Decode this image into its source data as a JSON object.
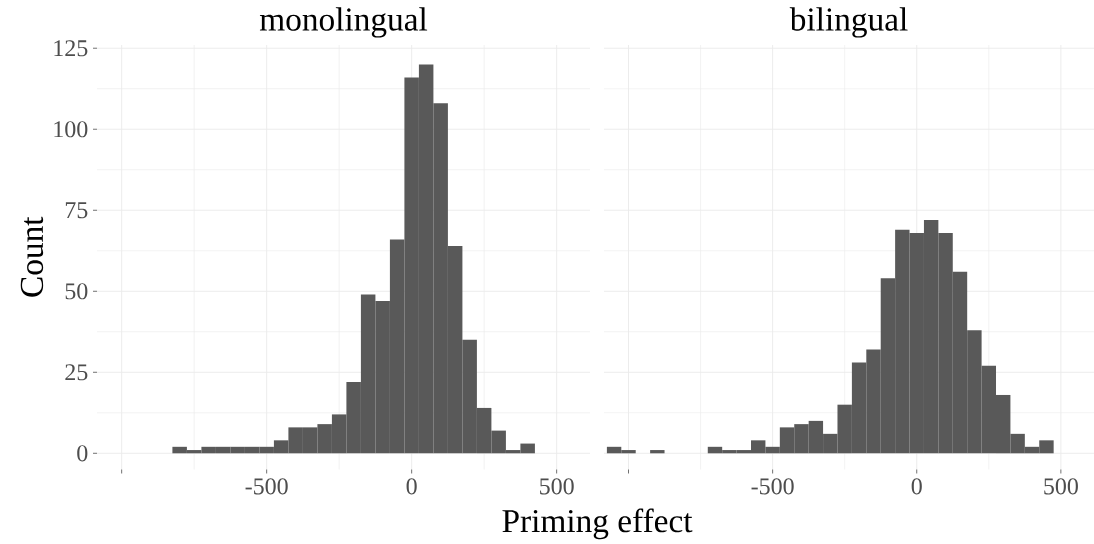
{
  "chart_data": [
    {
      "type": "histogram",
      "title": "monolingual",
      "xlabel": "Priming effect",
      "ylabel": "Count",
      "color": "#595959",
      "bins": [
        -1075,
        -1025,
        -975,
        -925,
        -875,
        -825,
        -775,
        -725,
        -675,
        -625,
        -575,
        -525,
        -475,
        -425,
        -375,
        -325,
        -275,
        -225,
        -175,
        -125,
        -75,
        -25,
        25,
        75,
        125,
        175,
        225,
        275,
        325,
        375,
        425,
        475
      ],
      "values": [
        0,
        0,
        0,
        0,
        0,
        2,
        1,
        2,
        2,
        2,
        2,
        2,
        4,
        8,
        8,
        9,
        12,
        22,
        49,
        47,
        66,
        116,
        120,
        108,
        64,
        35,
        14,
        7,
        1,
        3,
        0
      ],
      "xlim": [
        -1085,
        615
      ],
      "ylim": [
        -5,
        126
      ],
      "xticks": [
        {
          "value": -1000,
          "label": null
        },
        -500,
        0,
        500
      ],
      "yticks": [
        0,
        25,
        50,
        75,
        100,
        125
      ],
      "grid": true
    },
    {
      "type": "histogram",
      "title": "bilingual",
      "color": "#595959",
      "bins": [
        -1075,
        -1025,
        -975,
        -925,
        -875,
        -825,
        -775,
        -725,
        -675,
        -625,
        -575,
        -525,
        -475,
        -425,
        -375,
        -325,
        -275,
        -225,
        -175,
        -125,
        -75,
        -25,
        25,
        75,
        125,
        175,
        225,
        275,
        325,
        375,
        425,
        475
      ],
      "values": [
        2,
        1,
        0,
        1,
        0,
        0,
        0,
        2,
        1,
        1,
        4,
        2,
        8,
        9,
        10,
        6,
        15,
        28,
        32,
        54,
        69,
        68,
        72,
        68,
        56,
        38,
        27,
        18,
        6,
        2,
        4
      ],
      "xlim": [
        -1085,
        615
      ],
      "ylim": [
        -5,
        126
      ],
      "xticks": [
        {
          "value": -1000,
          "label": null
        },
        -500,
        0,
        500
      ],
      "yticks": [
        0,
        25,
        50,
        75,
        100,
        125
      ],
      "grid": true,
      "tick_labels": "x"
    }
  ]
}
